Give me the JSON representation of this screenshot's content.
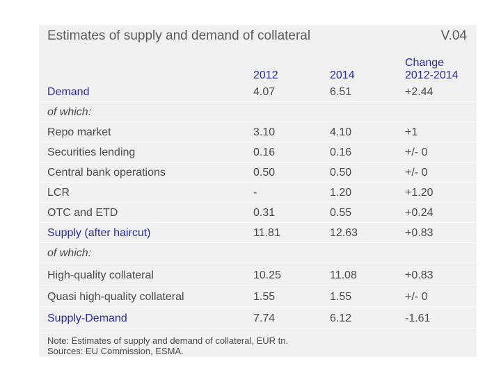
{
  "title": "Estimates of supply and demand of collateral",
  "code": "V.04",
  "headers": {
    "col_a": "2012",
    "col_b": "2014",
    "col_c_line1": "Change",
    "col_c_line2": "2012-2014"
  },
  "rows": [
    {
      "label": "Demand",
      "a": "4.07",
      "b": "6.51",
      "c": "+2.44"
    },
    {
      "label": "of which:",
      "a": "",
      "b": "",
      "c": ""
    },
    {
      "label": "Repo market",
      "a": "3.10",
      "b": "4.10",
      "c": "+1"
    },
    {
      "label": "Securities lending",
      "a": "0.16",
      "b": "0.16",
      "c": "+/- 0"
    },
    {
      "label": "Central bank operations",
      "a": "0.50",
      "b": "0.50",
      "c": "+/- 0"
    },
    {
      "label": "LCR",
      "a": "-",
      "b": "1.20",
      "c": "+1.20"
    },
    {
      "label": "OTC and ETD",
      "a": "0.31",
      "b": "0.55",
      "c": "+0.24"
    },
    {
      "label": "Supply (after haircut)",
      "a": "11.81",
      "b": "12.63",
      "c": "+0.83"
    },
    {
      "label": "of which:",
      "a": "",
      "b": "",
      "c": ""
    },
    {
      "label": "High-quality collateral",
      "a": "10.25",
      "b": "11.08",
      "c": "+0.83"
    },
    {
      "label": "Quasi high-quality collateral",
      "a": "1.55",
      "b": "1.55",
      "c": "+/- 0"
    },
    {
      "label": "Supply-Demand",
      "a": "7.74",
      "b": "6.12",
      "c": "-1.61"
    }
  ],
  "note_line1": "Note: Estimates of supply and demand of collateral, EUR tn.",
  "note_line2": "Sources: EU Commission, ESMA."
}
